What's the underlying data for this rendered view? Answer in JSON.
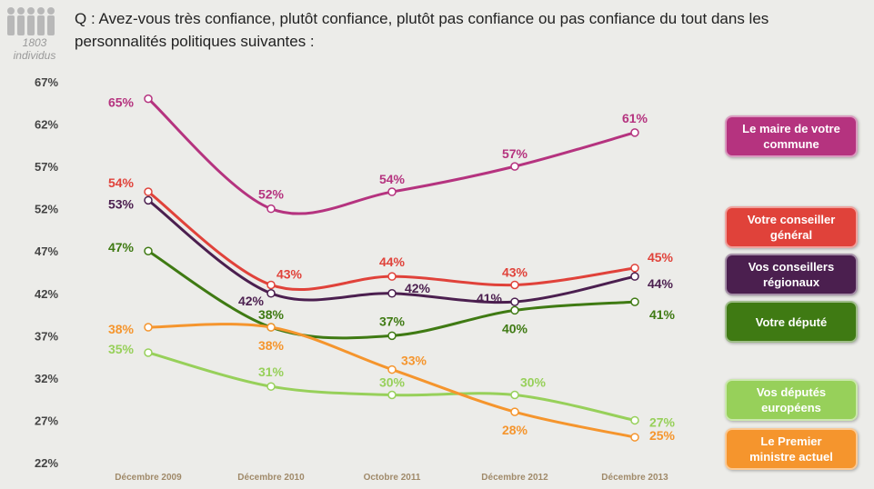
{
  "header": {
    "sample": "1803 individus"
  },
  "chart_data": {
    "type": "line",
    "title": "Q : Avez-vous très confiance, plutôt confiance, plutôt pas confiance ou pas confiance du tout dans les personnalités politiques suivantes :",
    "categories": [
      "Décembre 2009",
      "Décembre 2010",
      "Octobre 2011",
      "Décembre 2012",
      "Décembre 2013"
    ],
    "ylim": [
      22,
      67
    ],
    "yticks": [
      {
        "value": 22,
        "label": "22%"
      },
      {
        "value": 27,
        "label": "27%"
      },
      {
        "value": 32,
        "label": "32%"
      },
      {
        "value": 37,
        "label": "37%"
      },
      {
        "value": 42,
        "label": "42%"
      },
      {
        "value": 47,
        "label": "47%"
      },
      {
        "value": 52,
        "label": "52%"
      },
      {
        "value": 57,
        "label": "57%"
      },
      {
        "value": 62,
        "label": "62%"
      },
      {
        "value": 67,
        "label": "67%"
      }
    ],
    "series": [
      {
        "name": "Le maire de votre commune",
        "color": "#b5337f",
        "values": [
          65,
          52,
          54,
          57,
          61
        ],
        "value_labels": [
          "65%",
          "52%",
          "54%",
          "57%",
          "61%"
        ]
      },
      {
        "name": "Votre conseiller général",
        "color": "#e0423a",
        "values": [
          54,
          43,
          44,
          43,
          45
        ],
        "value_labels": [
          "54%",
          "43%",
          "44%",
          "43%",
          "45%"
        ]
      },
      {
        "name": "Vos conseillers régionaux",
        "color": "#4b1f4f",
        "values": [
          53,
          42,
          42,
          41,
          44
        ],
        "value_labels": [
          "53%",
          "42%",
          "42%",
          "41%",
          "44%"
        ]
      },
      {
        "name": "Votre député",
        "color": "#3f7a13",
        "values": [
          47,
          38,
          37,
          40,
          41
        ],
        "value_labels": [
          "47%",
          "38%",
          "37%",
          "40%",
          "41%"
        ]
      },
      {
        "name": "Vos députés européens",
        "color": "#97d05a",
        "values": [
          35,
          31,
          30,
          30,
          27
        ],
        "value_labels": [
          "35%",
          "31%",
          "30%",
          "30%",
          "27%"
        ]
      },
      {
        "name": "Le Premier ministre actuel",
        "color": "#f5952d",
        "values": [
          38,
          38,
          33,
          28,
          25
        ],
        "value_labels": [
          "38%",
          "38%",
          "33%",
          "28%",
          "25%"
        ]
      }
    ]
  }
}
